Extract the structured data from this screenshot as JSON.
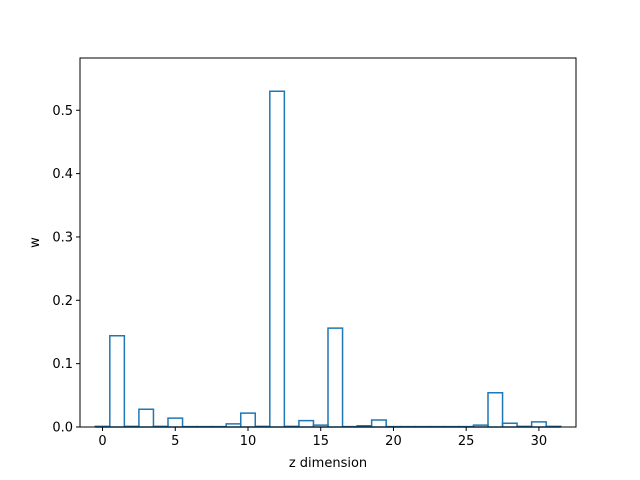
{
  "chart_data": {
    "type": "bar",
    "style": "step-outline",
    "xlabel": "z dimension",
    "ylabel": "w",
    "xlim": [
      -1.55,
      32.55
    ],
    "ylim": [
      0,
      0.5825
    ],
    "grid": false,
    "color": "#1f77b4",
    "x_ticks": [
      0,
      5,
      10,
      15,
      20,
      25,
      30
    ],
    "y_ticks": [
      0.0,
      0.1,
      0.2,
      0.3,
      0.4,
      0.5
    ],
    "x_tick_labels": [
      "0",
      "5",
      "10",
      "15",
      "20",
      "25",
      "30"
    ],
    "y_tick_labels": [
      "0.0",
      "0.1",
      "0.2",
      "0.3",
      "0.4",
      "0.5"
    ],
    "x": [
      0,
      1,
      2,
      3,
      4,
      5,
      6,
      7,
      8,
      9,
      10,
      11,
      12,
      13,
      14,
      15,
      16,
      17,
      18,
      19,
      20,
      21,
      22,
      23,
      24,
      25,
      26,
      27,
      28,
      29,
      30,
      31
    ],
    "values": [
      0.001,
      0.144,
      0.001,
      0.028,
      0.001,
      0.014,
      0.0005,
      0.0005,
      0.0005,
      0.005,
      0.022,
      0.001,
      0.53,
      0.001,
      0.01,
      0.003,
      0.156,
      0.0005,
      0.002,
      0.011,
      0.0005,
      0.0005,
      0.0005,
      0.0005,
      0.0005,
      0.0005,
      0.003,
      0.054,
      0.006,
      0.001,
      0.008,
      0.001
    ]
  }
}
